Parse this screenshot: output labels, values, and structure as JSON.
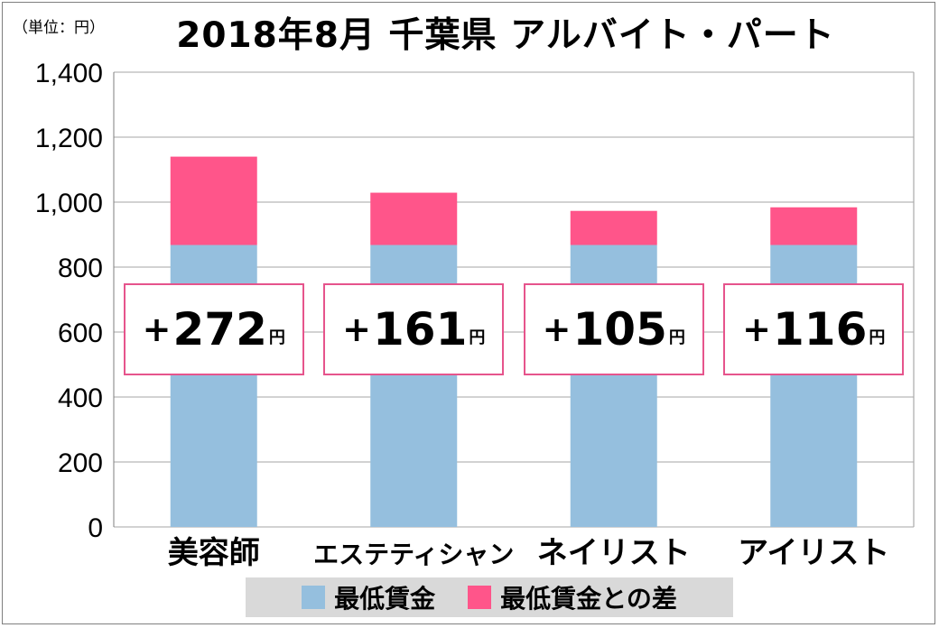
{
  "unit_label": "（単位：円）",
  "chart_data": {
    "type": "bar",
    "stacked": true,
    "title": "2018年8月 千葉県 アルバイト・パート",
    "categories": [
      "美容師",
      "エステティシャン",
      "ネイリスト",
      "アイリスト"
    ],
    "series": [
      {
        "name": "最低賃金",
        "color": "#95bfde",
        "values": [
          868,
          868,
          868,
          868
        ]
      },
      {
        "name": "最低賃金との差",
        "color": "#ff558a",
        "values": [
          272,
          161,
          105,
          116
        ]
      }
    ],
    "diff_labels": [
      {
        "sign": "+",
        "value": "272",
        "unit": "円"
      },
      {
        "sign": "+",
        "value": "161",
        "unit": "円"
      },
      {
        "sign": "+",
        "value": "105",
        "unit": "円"
      },
      {
        "sign": "+",
        "value": "116",
        "unit": "円"
      }
    ],
    "ylim": [
      0,
      1400
    ],
    "yticks": [
      0,
      200,
      400,
      600,
      800,
      1000,
      1200,
      1400
    ],
    "ytick_labels": [
      "0",
      "200",
      "400",
      "600",
      "800",
      "1,000",
      "1,200",
      "1,400"
    ],
    "grid": true,
    "legend_position": "bottom"
  }
}
